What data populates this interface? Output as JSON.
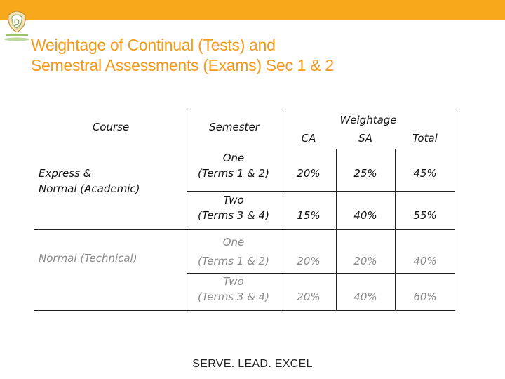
{
  "slide": {
    "title_line1": "Weightage of  Continual  (Tests) and",
    "title_line2": "Semestral Assessments (Exams) Sec 1 & 2",
    "footer": "SERVE. LEAD. EXCEL",
    "accent_color": "#f7a81b",
    "title_color": "#f29a1e"
  },
  "table": {
    "headers": {
      "course": "Course",
      "semester": "Semester",
      "weightage": "Weightage",
      "ca": "CA",
      "sa": "SA",
      "total": "Total"
    },
    "groups": [
      {
        "course_line1": "Express &",
        "course_line2": "Normal (Academic)",
        "rows": [
          {
            "sem_line1": "One",
            "sem_line2": "(Terms 1 & 2)",
            "ca": "20%",
            "sa": "25%",
            "total": "45%"
          },
          {
            "sem_line1": "Two",
            "sem_line2": "(Terms 3 & 4)",
            "ca": "15%",
            "sa": "40%",
            "total": "55%"
          }
        ]
      },
      {
        "course_line1": "Normal (Technical)",
        "rows": [
          {
            "sem_line1": "One",
            "sem_line2": "(Terms 1 & 2)",
            "ca": "20%",
            "sa": "20%",
            "total": "40%"
          },
          {
            "sem_line1": "Two",
            "sem_line2": "(Terms 3 & 4)",
            "ca": "20%",
            "sa": "40%",
            "total": "60%"
          }
        ]
      }
    ]
  }
}
